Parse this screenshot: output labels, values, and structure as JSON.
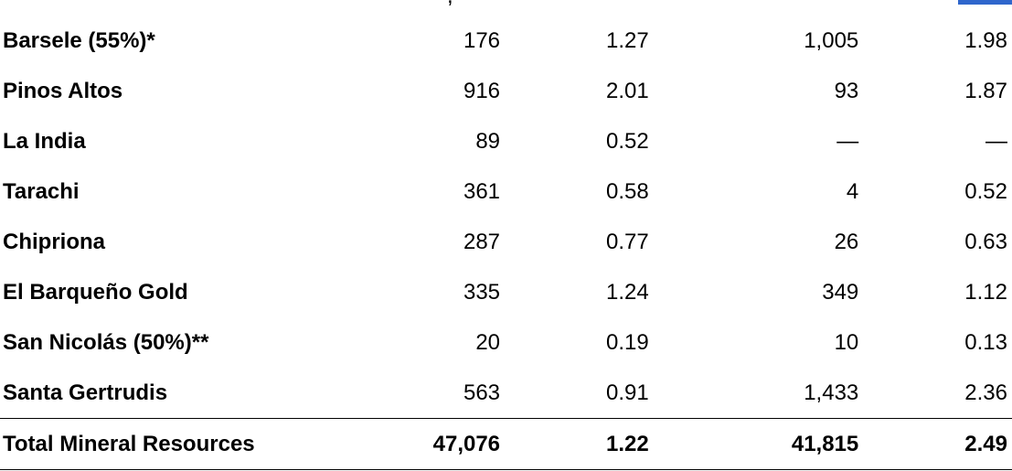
{
  "header_fragment": ",",
  "accent_color": "#2f66cc",
  "rows": [
    {
      "name": "Barsele (55%)*",
      "v1": "176",
      "v2": "1.27",
      "v3": "1,005",
      "v4": "1.98"
    },
    {
      "name": "Pinos Altos",
      "v1": "916",
      "v2": "2.01",
      "v3": "93",
      "v4": "1.87"
    },
    {
      "name": "La India",
      "v1": "89",
      "v2": "0.52",
      "v3": "—",
      "v4": "—"
    },
    {
      "name": "Tarachi",
      "v1": "361",
      "v2": "0.58",
      "v3": "4",
      "v4": "0.52"
    },
    {
      "name": "Chipriona",
      "v1": "287",
      "v2": "0.77",
      "v3": "26",
      "v4": "0.63"
    },
    {
      "name": "El Barqueño Gold",
      "v1": "335",
      "v2": "1.24",
      "v3": "349",
      "v4": "1.12"
    },
    {
      "name": "San Nicolás (50%)**",
      "v1": "20",
      "v2": "0.19",
      "v3": "10",
      "v4": "0.13"
    },
    {
      "name": "Santa Gertrudis",
      "v1": "563",
      "v2": "0.91",
      "v3": "1,433",
      "v4": "2.36"
    }
  ],
  "total": {
    "name": "Total Mineral Resources",
    "v1": "47,076",
    "v2": "1.22",
    "v3": "41,815",
    "v4": "2.49"
  }
}
